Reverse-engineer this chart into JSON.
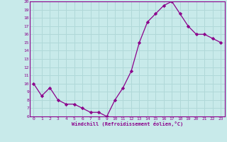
{
  "x": [
    0,
    1,
    2,
    3,
    4,
    5,
    6,
    7,
    8,
    9,
    10,
    11,
    12,
    13,
    14,
    15,
    16,
    17,
    18,
    19,
    20,
    21,
    22,
    23
  ],
  "y": [
    10,
    8.5,
    9.5,
    8,
    7.5,
    7.5,
    7,
    6.5,
    6.5,
    6,
    8,
    9.5,
    11.5,
    15,
    17.5,
    18.5,
    19.5,
    20,
    18.5,
    17,
    16,
    16,
    15.5,
    15
  ],
  "line_color": "#8b008b",
  "marker": "D",
  "marker_size": 2.2,
  "bg_color": "#c8eaea",
  "grid_color": "#b0d8d8",
  "xlabel": "Windchill (Refroidissement éolien,°C)",
  "xlabel_color": "#8b008b",
  "ylim": [
    6,
    20
  ],
  "yticks": [
    6,
    7,
    8,
    9,
    10,
    11,
    12,
    13,
    14,
    15,
    16,
    17,
    18,
    19,
    20
  ],
  "xticks": [
    0,
    1,
    2,
    3,
    4,
    5,
    6,
    7,
    8,
    9,
    10,
    11,
    12,
    13,
    14,
    15,
    16,
    17,
    18,
    19,
    20,
    21,
    22,
    23
  ],
  "tick_color": "#8b008b",
  "spine_color": "#8b008b"
}
